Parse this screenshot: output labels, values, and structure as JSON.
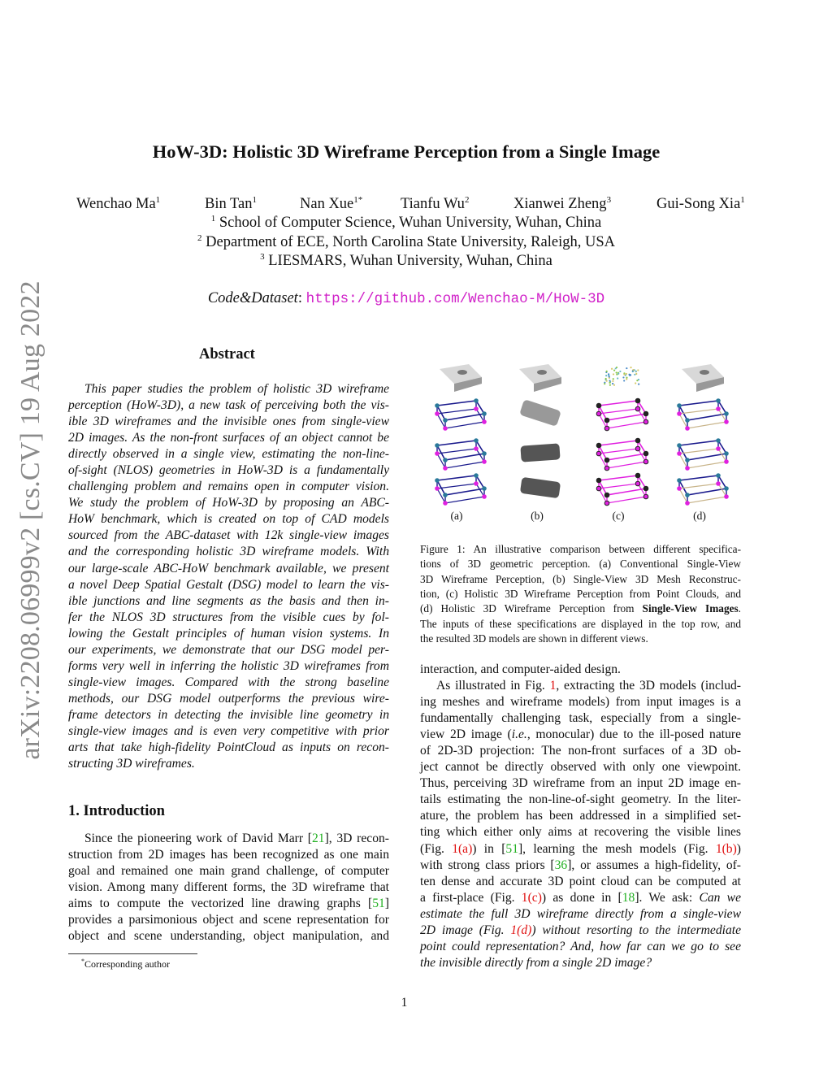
{
  "sidebar": {
    "arxiv_id": "arXiv:2208.06999v2  [cs.CV]  19 Aug 2022"
  },
  "title": "HoW-3D: Holistic 3D Wireframe Perception from a Single Image",
  "authors": [
    {
      "name": "Wenchao Ma",
      "sup": "1"
    },
    {
      "name": "Bin Tan",
      "sup": "1"
    },
    {
      "name": "Nan Xue",
      "sup": "1*"
    },
    {
      "name": "Tianfu Wu",
      "sup": "2"
    },
    {
      "name": "Xianwei Zheng",
      "sup": "3"
    },
    {
      "name": "Gui-Song Xia",
      "sup": "1"
    }
  ],
  "affiliations": [
    {
      "sup": "1",
      "text": "School of Computer Science, Wuhan University, Wuhan, China"
    },
    {
      "sup": "2",
      "text": "Department of ECE, North Carolina State University, Raleigh, USA"
    },
    {
      "sup": "3",
      "text": "LIESMARS, Wuhan University, Wuhan, China"
    }
  ],
  "code": {
    "label": "Code&Dataset",
    "url": "https://github.com/Wenchao-M/HoW-3D"
  },
  "abstract": {
    "title": "Abstract",
    "lines": [
      "This paper studies the problem of holistic 3D wireframe",
      "perception (HoW-3D), a new task of perceiving both the vis-",
      "ible 3D wireframes and the invisible ones from single-view",
      "2D images. As the non-front surfaces of an object cannot be",
      "directly observed in a single view, estimating the non-line-",
      "of-sight (NLOS) geometries in HoW-3D is a fundamentally",
      "challenging problem and remains open in computer vision.",
      "We study the problem of HoW-3D by proposing an ABC-",
      "HoW benchmark, which is created on top of CAD models",
      "sourced from the ABC-dataset with 12k single-view images",
      "and the corresponding holistic 3D wireframe models. With",
      "our large-scale ABC-HoW benchmark available, we present",
      "a novel Deep Spatial Gestalt (DSG) model to learn the vis-",
      "ible junctions and line segments as the basis and then in-",
      "fer the NLOS 3D structures from the visible cues by fol-",
      "lowing the Gestalt principles of human vision systems. In",
      "our experiments, we demonstrate that our DSG model per-",
      "forms very well in inferring the holistic 3D wireframes from",
      "single-view images. Compared with the strong baseline",
      "methods, our DSG model outperforms the previous wire-",
      "frame detectors in detecting the invisible line geometry in",
      "single-view images and is even very competitive with prior",
      "arts that take high-fidelity PointCloud as inputs on recon-",
      "structing 3D wireframes."
    ]
  },
  "introduction": {
    "title": "1. Introduction",
    "left_lines": [
      "Since the pioneering work of David Marr [21], 3D recon-",
      "struction from 2D images has been recognized as one main",
      "goal and remained one main grand challenge, of computer",
      "vision. Among many different forms, the 3D wireframe that",
      "aims to compute the vectorized line drawing graphs [51]",
      "provides a parsimonious object and scene representation for",
      "object and scene understanding, object manipulation, and"
    ],
    "right_lines": [
      "interaction, and computer-aided design.",
      "As illustrated in Fig. 1, extracting the 3D models (includ-",
      "ing meshes and wireframe models) from input images is a",
      "fundamentally challenging task, especially from a single-",
      "view 2D image (_i.e._, monocular) due to the ill-posed nature",
      "of 2D-3D projection: The non-front surfaces of a 3D ob-",
      "ject cannot be directly observed with only one viewpoint.",
      "Thus, perceiving 3D wireframe from an input 2D image en-",
      "tails estimating the non-line-of-sight geometry. In the liter-",
      "ature, the problem has been addressed in a simplified set-",
      "ting which either only aims at recovering the visible lines",
      "(Fig. 1(a)) in [51], learning the mesh models (Fig. 1(b))",
      "with strong class priors [36], or assumes a high-fidelity, of-",
      "ten dense and accurate 3D point cloud can be computed at",
      "a first-place (Fig. 1(c)) as done in [18]. We ask: _Can we_",
      "_estimate the full 3D wireframe directly from a single-view_",
      "_2D image (Fig. 1(d)) without resorting to the intermediate_",
      "_point could representation? And, how far can we go to see_",
      "_the invisible directly from a single 2D image?_"
    ]
  },
  "figure": {
    "panel_labels": [
      "(a)",
      "(b)",
      "(c)",
      "(d)"
    ],
    "caption_lines": [
      "Figure 1: An illustrative comparison between different specifica-",
      "tions of 3D geometric perception. (a) Conventional Single-View",
      "3D Wireframe Perception, (b) Single-View 3D Mesh Reconstruc-",
      "tion, (c) Holistic 3D Wireframe Perception from Point Clouds, and",
      "(d) Holistic 3D Wireframe Perception from **Single-View Images**.",
      "The inputs of these specifications are displayed in the top row, and",
      "the resulted 3D models are shown in different views."
    ],
    "colors": {
      "visible": "#1a1a8c",
      "junction": "#2a7a9a",
      "hidden": "#e020e0",
      "invisible_d": "#c8b48a",
      "mesh": "#555555",
      "input": "#d8d8d8"
    }
  },
  "footnote": {
    "mark": "*",
    "text": "Corresponding author"
  },
  "page_number": "1"
}
